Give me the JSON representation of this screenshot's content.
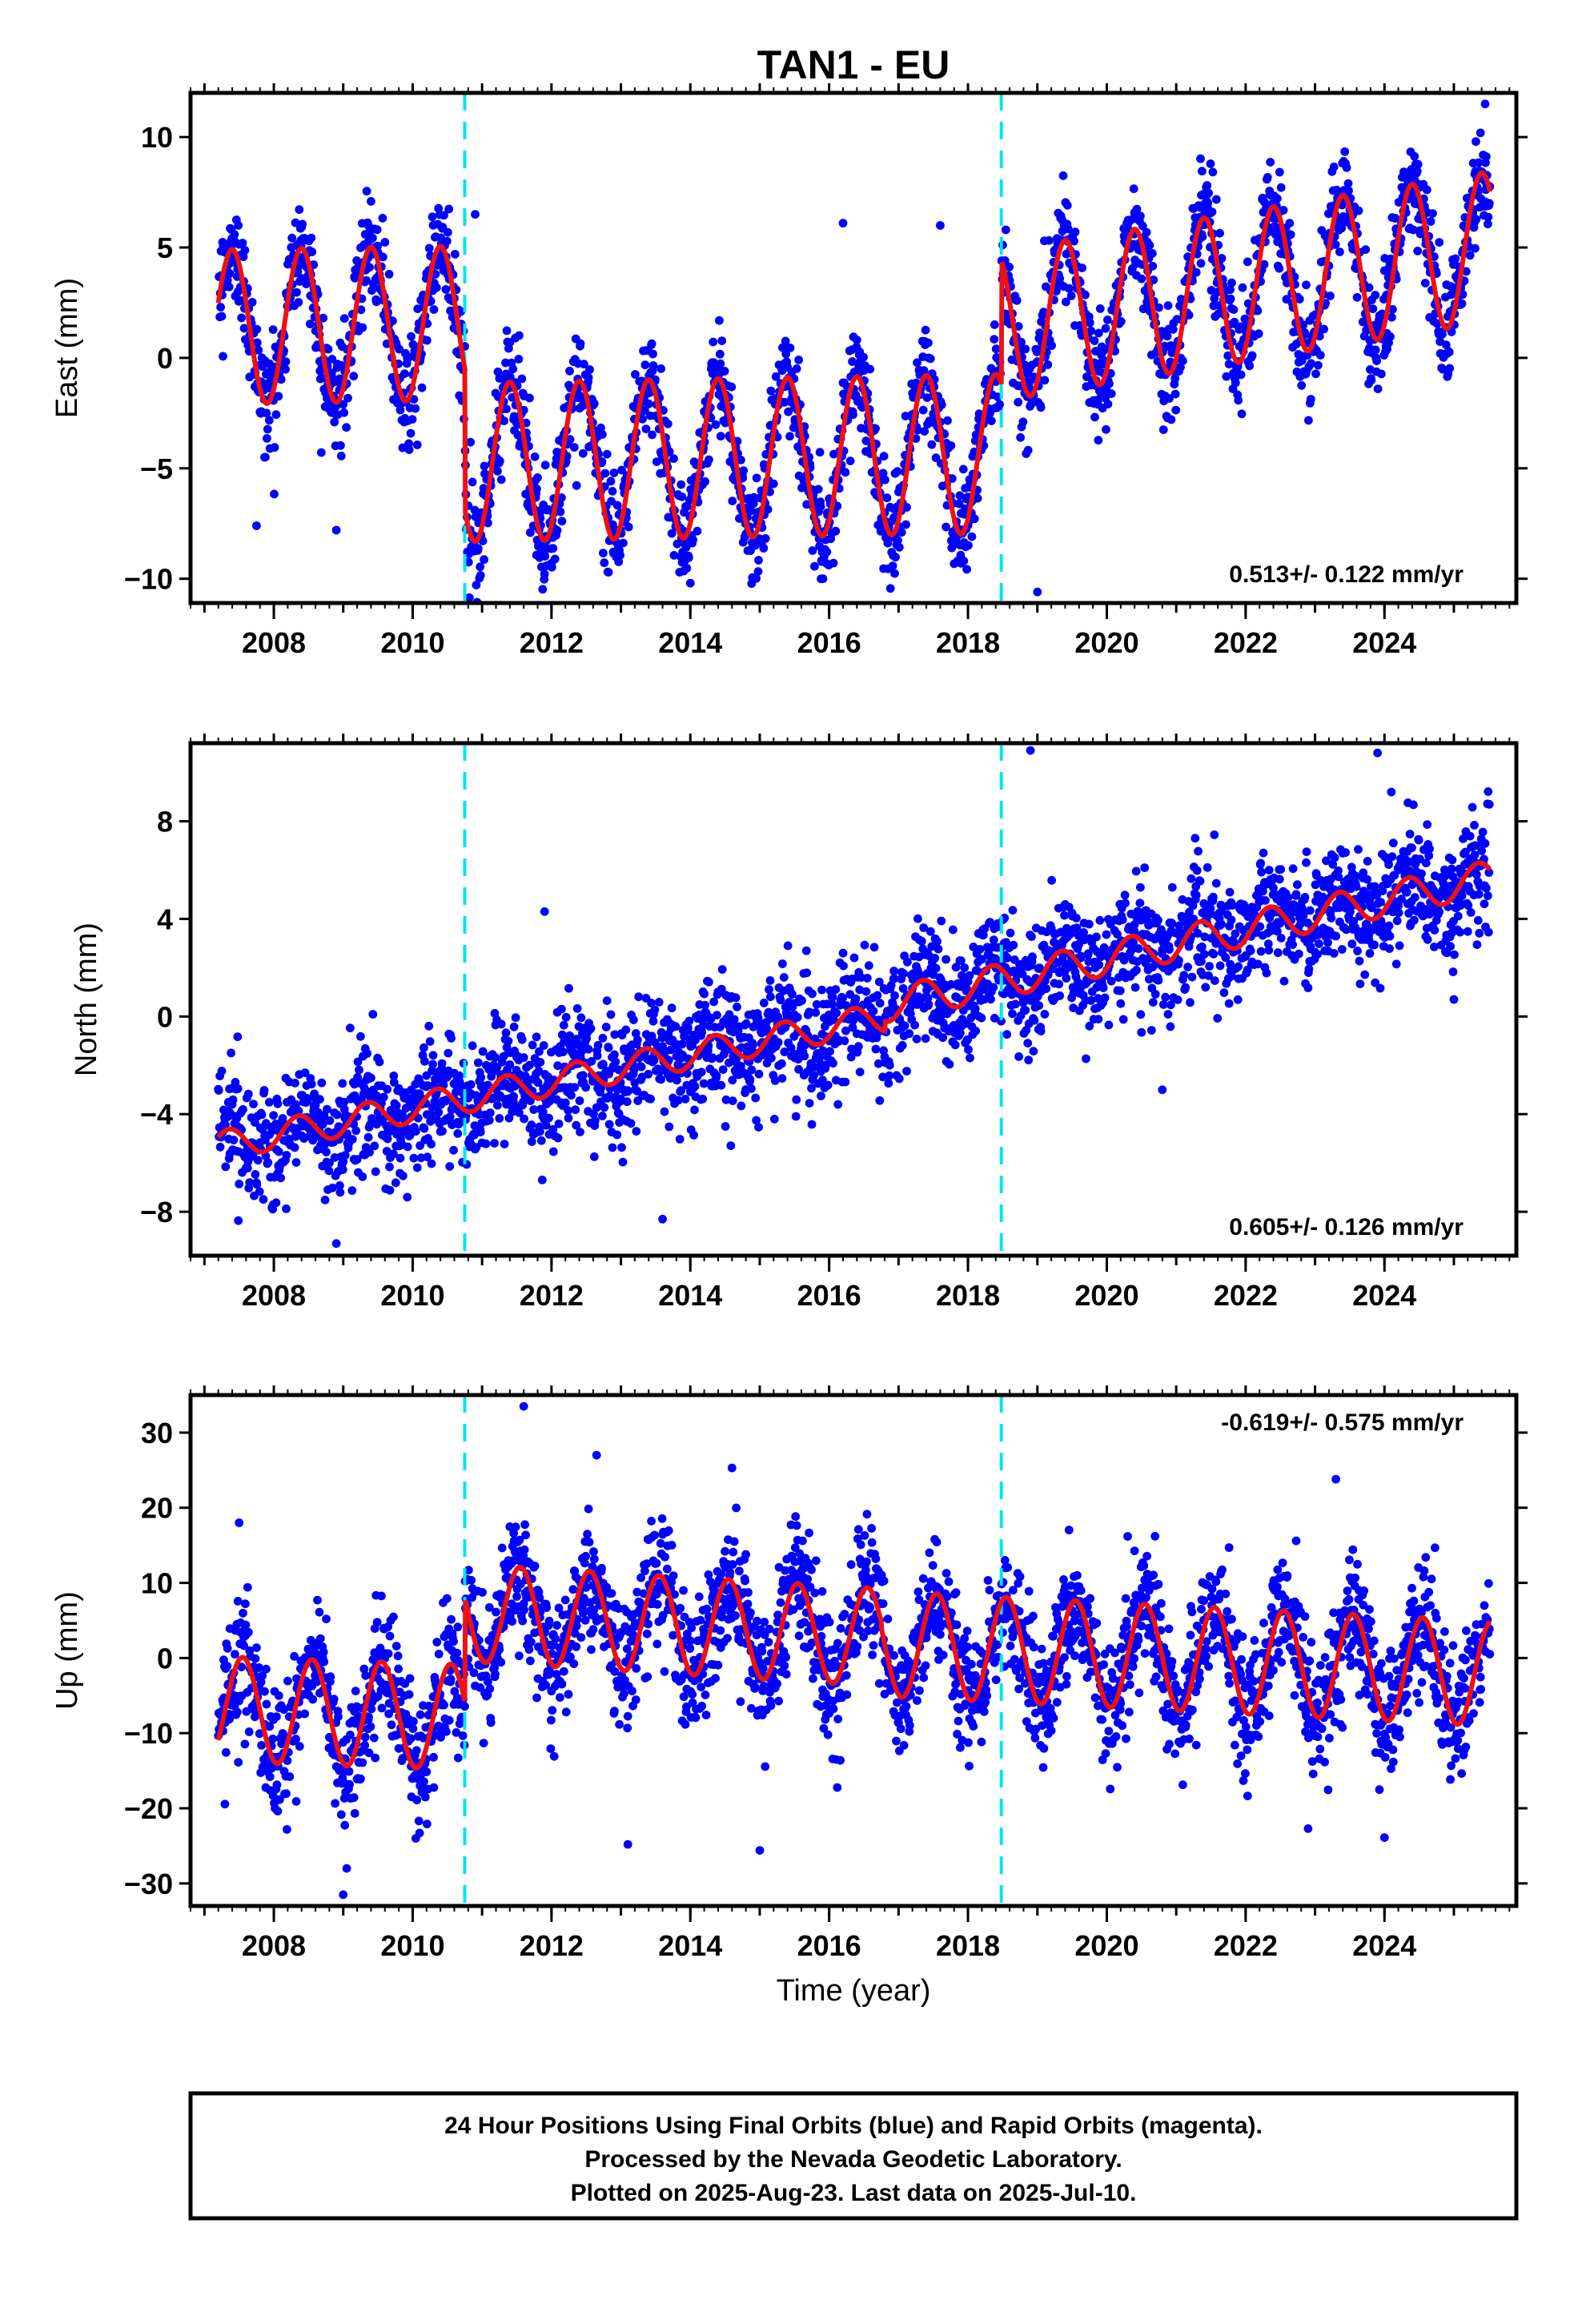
{
  "chart_data": {
    "type": "scatter",
    "title": "TAN1 - EU",
    "x_range": [
      2006.8,
      2025.9
    ],
    "xticks": [
      2008,
      2010,
      2012,
      2014,
      2016,
      2018,
      2020,
      2022,
      2024
    ],
    "xtick_labels": [
      "2008",
      "2010",
      "2012",
      "2014",
      "2016",
      "2018",
      "2020",
      "2022",
      "2024"
    ],
    "xlabel": "Time (year)",
    "data_start": 2007.2,
    "data_end": 2025.52,
    "offset_lines": [
      2010.75,
      2018.48
    ],
    "colors": {
      "points": "#0000ff",
      "model": "#ee1111",
      "offset_lines": "#00e5ee",
      "frame": "#000000"
    },
    "panels": [
      {
        "ylabel": "East (mm)",
        "ylim": [
          -11.1,
          12
        ],
        "yticks": [
          -10,
          -5,
          0,
          5,
          10
        ],
        "ytick_labels": [
          "−10",
          "−5",
          "0",
          "5",
          "10"
        ],
        "rate_text": "0.513+/- 0.122 mm/yr",
        "rate_position": "bottom-right",
        "model": {
          "t0": 2007.2,
          "segments": [
            {
              "from": 2007.2,
              "to": 2010.75,
              "offset": 1.4,
              "trend": 0.05,
              "amplitude": 3.5,
              "peak": 0.4
            },
            {
              "from": 2010.75,
              "to": 2018.48,
              "offset": -4.9,
              "trend": 0.05,
              "amplitude": 3.6,
              "peak": 0.4
            },
            {
              "from": 2018.48,
              "to": 2025.52,
              "offset": -4.3,
              "trend": 0.51,
              "amplitude": 3.4,
              "peak": 0.4
            }
          ]
        },
        "noise_sd": 1.2,
        "outliers": [
          [
            2007.75,
            -7.6
          ],
          [
            2008.9,
            -7.8
          ],
          [
            2012.0,
            -9.3
          ],
          [
            2014.0,
            -10.2
          ],
          [
            2017.9,
            -9.3
          ],
          [
            2019.0,
            -10.6
          ],
          [
            2025.45,
            11.5
          ],
          [
            2010.9,
            6.5
          ],
          [
            2016.2,
            6.1
          ],
          [
            2017.6,
            6.0
          ]
        ]
      },
      {
        "ylabel": "North (mm)",
        "ylim": [
          -9.8,
          11.2
        ],
        "yticks": [
          -8,
          -4,
          0,
          4,
          8
        ],
        "ytick_labels": [
          "−8",
          "−4",
          "0",
          "4",
          "8"
        ],
        "rate_text": "0.605+/- 0.126 mm/yr",
        "rate_position": "bottom-right",
        "model": {
          "t0": 2007.2,
          "segments": [
            {
              "from": 2007.2,
              "to": 2016.8,
              "offset": -5.3,
              "trend": 0.55,
              "amplitude": 0.6,
              "peak": 0.35
            },
            {
              "from": 2016.8,
              "to": 2025.52,
              "offset": -5.3,
              "trend": 0.6,
              "amplitude": 0.7,
              "peak": 0.35
            }
          ]
        },
        "noise_sd": 1.2,
        "outliers": [
          [
            2008.9,
            -9.3
          ],
          [
            2011.9,
            4.3
          ],
          [
            2013.6,
            -8.3
          ],
          [
            2018.9,
            10.9
          ],
          [
            2023.9,
            10.8
          ],
          [
            2024.1,
            9.2
          ],
          [
            2020.8,
            -3.0
          ],
          [
            2025.0,
            0.7
          ]
        ]
      },
      {
        "ylabel": "Up (mm)",
        "ylim": [
          -33,
          35
        ],
        "yticks": [
          -30,
          -20,
          -10,
          0,
          10,
          20,
          30
        ],
        "ytick_labels": [
          "−30",
          "−20",
          "−10",
          "0",
          "10",
          "20",
          "30"
        ],
        "rate_text": "-0.619+/- 0.575 mm/yr",
        "rate_position": "top-right",
        "model": {
          "t0": 2007.2,
          "segments": [
            {
              "from": 2007.2,
              "to": 2010.75,
              "offset": -6.8,
              "trend": -0.3,
              "amplitude": 7.0,
              "peak": 0.55
            },
            {
              "from": 2010.75,
              "to": 2016.75,
              "offset": 8.0,
              "trend": -0.55,
              "amplitude": 6.5,
              "peak": 0.55
            },
            {
              "from": 2016.75,
              "to": 2025.52,
              "offset": 6.2,
              "trend": -0.45,
              "amplitude": 7.0,
              "peak": 0.55
            }
          ]
        },
        "noise_sd": 4.2,
        "outliers": [
          [
            2007.5,
            18.0
          ],
          [
            2009.0,
            -31.5
          ],
          [
            2009.05,
            -28.0
          ],
          [
            2011.6,
            33.5
          ],
          [
            2013.1,
            -24.8
          ],
          [
            2014.6,
            25.3
          ],
          [
            2015.0,
            -25.6
          ],
          [
            2023.3,
            23.8
          ],
          [
            2022.9,
            -22.7
          ],
          [
            2024.0,
            -23.9
          ],
          [
            2012.65,
            27.0
          ]
        ]
      }
    ]
  },
  "footer": {
    "line1": "24 Hour Positions Using Final Orbits (blue) and Rapid Orbits (magenta).",
    "line2": "Processed by the Nevada Geodetic Laboratory.",
    "line3": "Plotted on 2025-Aug-23. Last data on 2025-Jul-10."
  }
}
